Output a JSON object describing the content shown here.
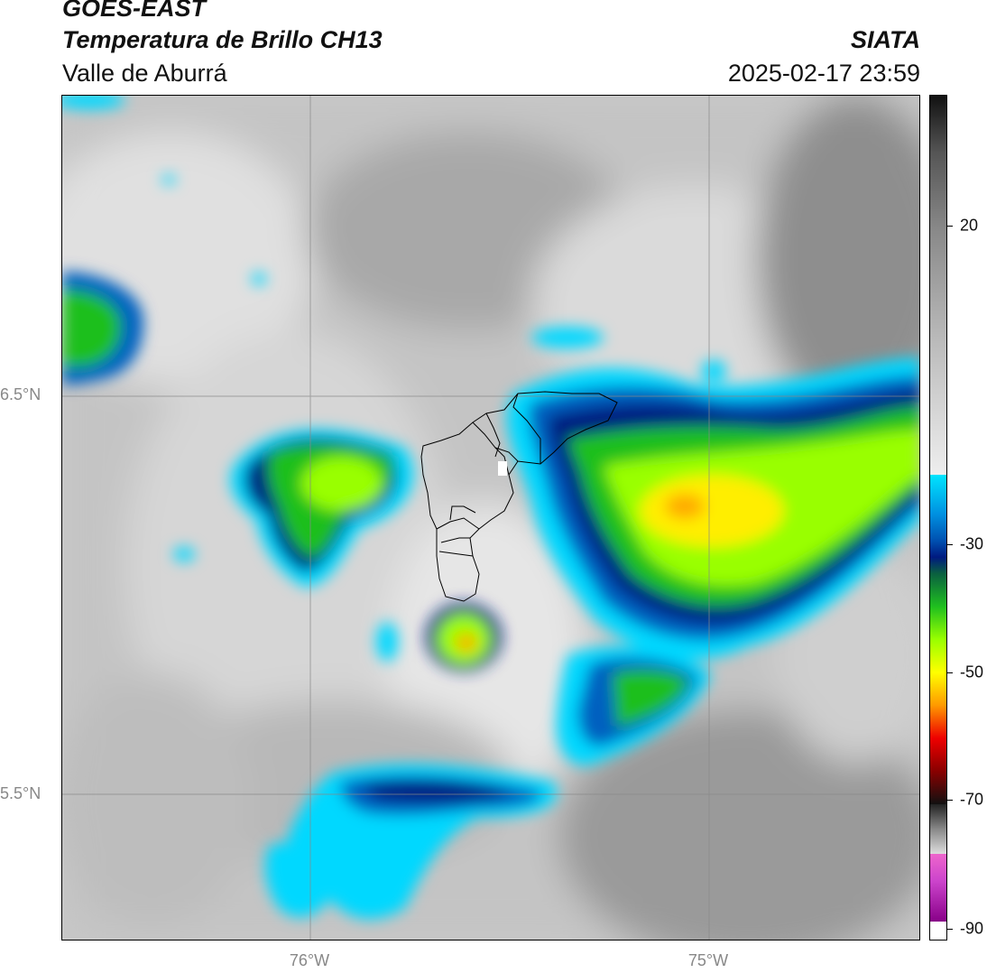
{
  "header": {
    "satellite": "GOES-EAST",
    "product": "Temperatura de Brillo CH13",
    "region": "Valle de Aburrá",
    "agency": "SIATA",
    "datetime": "2025-02-17 23:59"
  },
  "map": {
    "lat_labels": [
      "6.5°N",
      "5.5°N"
    ],
    "lon_labels": [
      "76°W",
      "75°W"
    ]
  },
  "colorbar": {
    "ticks": [
      "20",
      "-30",
      "-50",
      "-70",
      "-90"
    ],
    "colors": {
      "cyan": "#00e5ff",
      "blue": "#0077cc",
      "navy": "#001a80",
      "green": "#1fbf1f",
      "lime": "#99ff00",
      "yellow": "#ffff00",
      "orange": "#ff9900",
      "red": "#ee0000",
      "darkred": "#550000",
      "magenta": "#cc44cc",
      "purple": "#880088"
    }
  }
}
